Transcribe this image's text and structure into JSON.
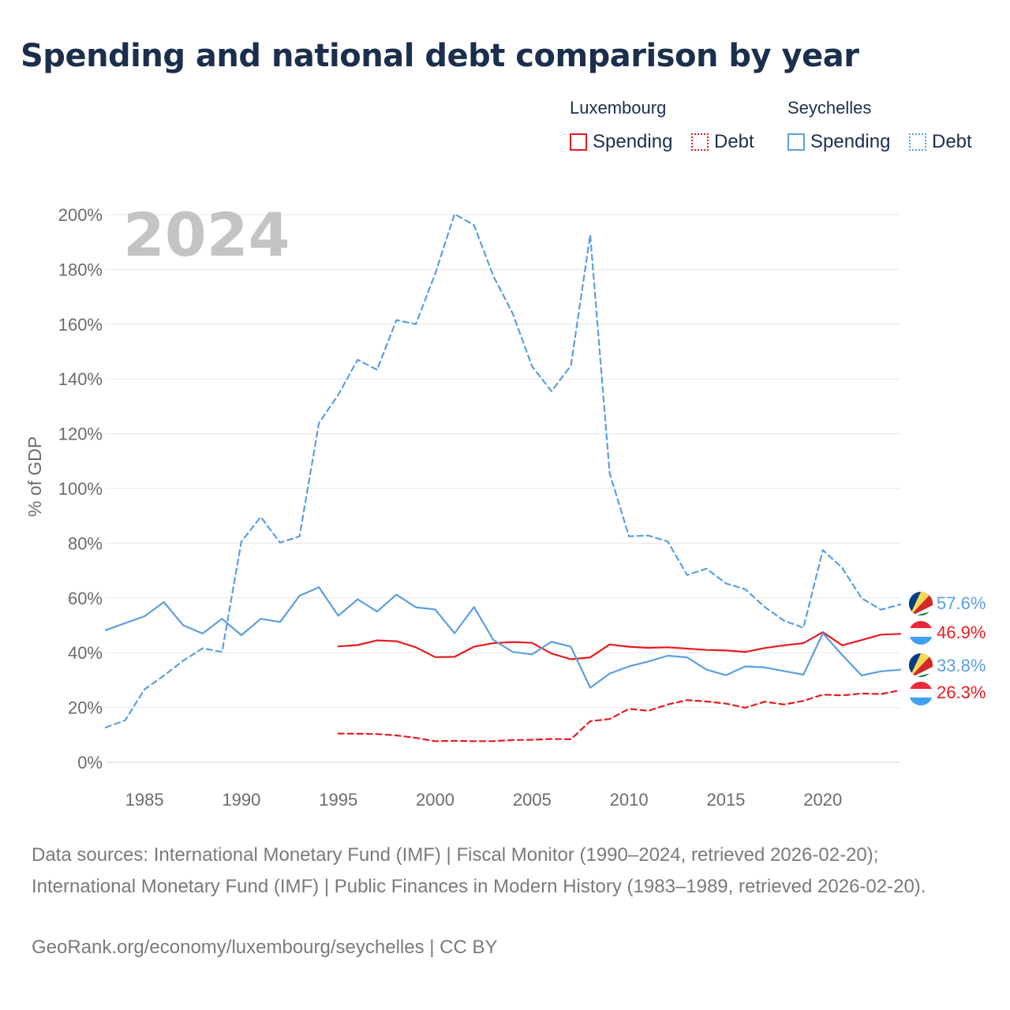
{
  "title": "Spending and national debt comparison by year",
  "legend": {
    "groups": [
      {
        "country": "Luxembourg",
        "spending_label": "Spending",
        "debt_label": "Debt",
        "color": "#e8191d"
      },
      {
        "country": "Seychelles",
        "spending_label": "Spending",
        "debt_label": "Debt",
        "color": "#5b9fe0"
      }
    ]
  },
  "footer": {
    "sources": "Data sources: International Monetary Fund (IMF) | Fiscal Monitor (1990–2024, retrieved 2026-02-20); International Monetary Fund (IMF) | Public Finances in Modern History (1983–1989, retrieved 2026-02-20).",
    "credit": "GeoRank.org/economy/luxembourg/seychelles | CC BY"
  },
  "chart_data": {
    "type": "line",
    "title": "Spending and national debt comparison by year",
    "year_label": "2024",
    "xlabel": "",
    "ylabel": "% of GDP",
    "xlim": [
      1983,
      2024
    ],
    "ylim": [
      0,
      200
    ],
    "x_ticks": [
      1985,
      1990,
      1995,
      2000,
      2005,
      2010,
      2015,
      2020
    ],
    "y_ticks": [
      0,
      20,
      40,
      60,
      80,
      100,
      120,
      140,
      160,
      180,
      200
    ],
    "y_tick_format": "{v}%",
    "grid": true,
    "series": [
      {
        "name": "Luxembourg Spending",
        "country": "Luxembourg",
        "kind": "Spending",
        "color": "#e8191d",
        "dash": "solid",
        "end_label": "46.9%",
        "flag": "luxembourg-flag",
        "x": [
          1995,
          1996,
          1997,
          1998,
          1999,
          2000,
          2001,
          2002,
          2003,
          2004,
          2005,
          2006,
          2007,
          2008,
          2009,
          2010,
          2011,
          2012,
          2013,
          2014,
          2015,
          2016,
          2017,
          2018,
          2019,
          2020,
          2021,
          2022,
          2023,
          2024
        ],
        "values": [
          42.3,
          42.8,
          44.5,
          44.2,
          42.0,
          38.4,
          38.5,
          42.2,
          43.5,
          43.9,
          43.6,
          39.7,
          37.6,
          38.3,
          43.0,
          42.2,
          41.8,
          42.0,
          41.5,
          41.0,
          40.8,
          40.3,
          41.7,
          42.7,
          43.5,
          47.5,
          42.7,
          44.6,
          46.6,
          46.9
        ]
      },
      {
        "name": "Luxembourg Debt",
        "country": "Luxembourg",
        "kind": "Debt",
        "color": "#e8191d",
        "dash": "dashed",
        "end_label": "26.3%",
        "flag": "luxembourg-flag",
        "x": [
          1995,
          1996,
          1997,
          1998,
          1999,
          2000,
          2001,
          2002,
          2003,
          2004,
          2005,
          2006,
          2007,
          2008,
          2009,
          2010,
          2011,
          2012,
          2013,
          2014,
          2015,
          2016,
          2017,
          2018,
          2019,
          2020,
          2021,
          2022,
          2023,
          2024
        ],
        "values": [
          10.5,
          10.4,
          10.3,
          9.8,
          8.9,
          7.7,
          7.8,
          7.7,
          7.7,
          8.1,
          8.2,
          8.5,
          8.4,
          15.0,
          15.8,
          19.5,
          18.8,
          21.1,
          22.7,
          22.2,
          21.4,
          19.9,
          22.1,
          21.1,
          22.4,
          24.7,
          24.4,
          25.1,
          24.9,
          26.3
        ]
      },
      {
        "name": "Seychelles Spending",
        "country": "Seychelles",
        "kind": "Spending",
        "color": "#5b9fe0",
        "dash": "solid",
        "end_label": "33.8%",
        "flag": "seychelles-flag",
        "x": [
          1983,
          1984,
          1985,
          1986,
          1987,
          1988,
          1989,
          1990,
          1991,
          1992,
          1993,
          1994,
          1995,
          1996,
          1997,
          1998,
          1999,
          2000,
          2001,
          2002,
          2003,
          2004,
          2005,
          2006,
          2007,
          2008,
          2009,
          2010,
          2011,
          2012,
          2013,
          2014,
          2015,
          2016,
          2017,
          2018,
          2019,
          2020,
          2021,
          2022,
          2023,
          2024
        ],
        "values": [
          48.2,
          50.8,
          53.3,
          58.5,
          50.0,
          47.0,
          52.4,
          46.4,
          52.4,
          51.2,
          60.8,
          63.9,
          53.5,
          59.5,
          55.0,
          61.2,
          56.6,
          55.8,
          47.1,
          56.7,
          44.7,
          40.3,
          39.4,
          44.0,
          42.2,
          27.2,
          32.4,
          35.0,
          36.8,
          38.9,
          38.3,
          33.8,
          31.8,
          35.0,
          34.6,
          33.3,
          32.0,
          47.1,
          39.2,
          31.7,
          33.2,
          33.8
        ]
      },
      {
        "name": "Seychelles Debt",
        "country": "Seychelles",
        "kind": "Debt",
        "color": "#5b9fe0",
        "dash": "dashed",
        "end_label": "57.6%",
        "flag": "seychelles-flag",
        "x": [
          1983,
          1984,
          1985,
          1986,
          1987,
          1988,
          1989,
          1990,
          1991,
          1992,
          1993,
          1994,
          1995,
          1996,
          1997,
          1998,
          1999,
          2000,
          2001,
          2002,
          2003,
          2004,
          2005,
          2006,
          2007,
          2008,
          2009,
          2010,
          2011,
          2012,
          2013,
          2014,
          2015,
          2016,
          2017,
          2018,
          2019,
          2020,
          2021,
          2022,
          2023,
          2024
        ],
        "values": [
          12.7,
          15.3,
          26.6,
          31.6,
          37.1,
          41.6,
          40.3,
          80.6,
          89.6,
          80.2,
          82.5,
          123.9,
          134.2,
          147.0,
          143.3,
          161.5,
          160.0,
          178.4,
          200.2,
          196.2,
          177.6,
          163.9,
          144.6,
          135.5,
          144.8,
          192.6,
          105.6,
          82.5,
          82.8,
          80.6,
          68.4,
          70.7,
          65.3,
          63.2,
          56.7,
          51.7,
          49.1,
          77.5,
          71.0,
          59.9,
          55.7,
          57.6
        ]
      }
    ]
  }
}
